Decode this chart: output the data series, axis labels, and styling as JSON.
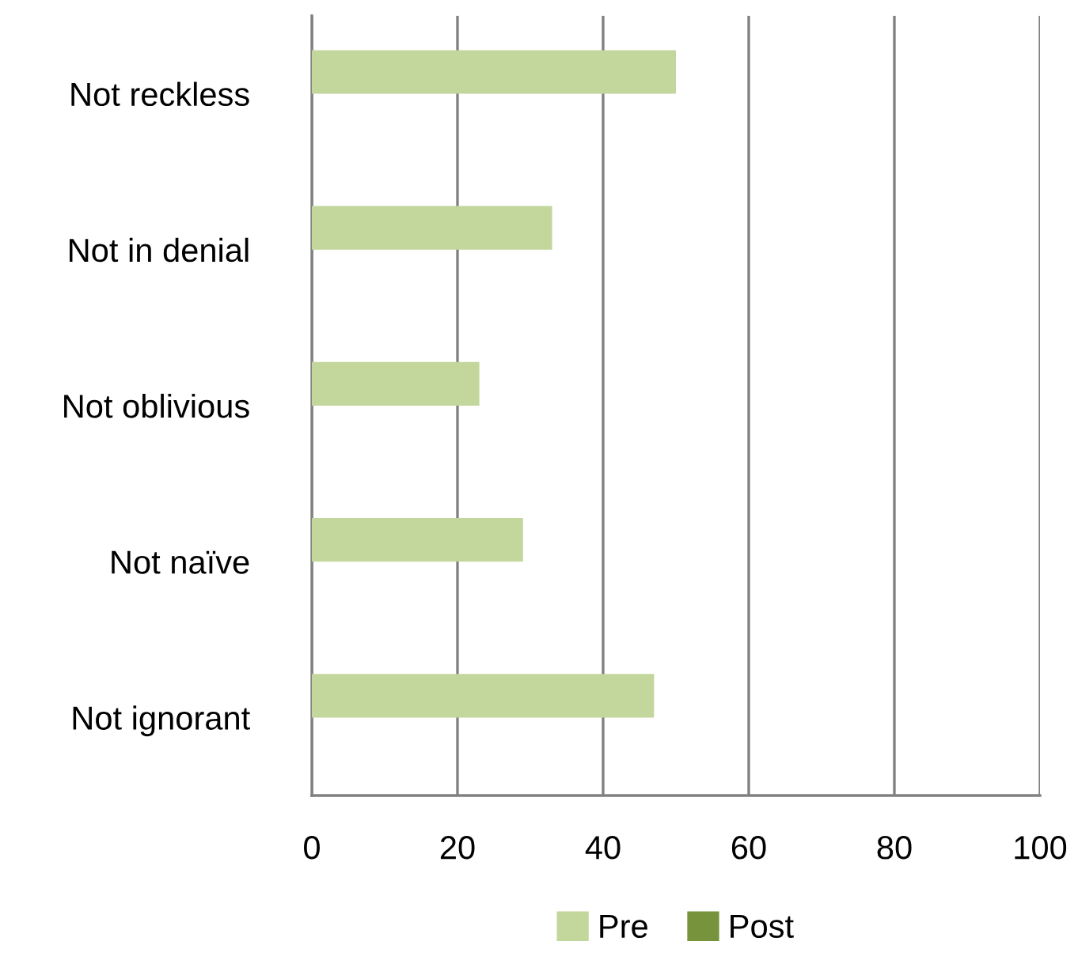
{
  "chart_data": {
    "type": "bar",
    "orientation": "horizontal",
    "categories": [
      "Not reckless",
      "Not in denial",
      "Not oblivious",
      "Not naïve",
      "Not ignorant"
    ],
    "series": [
      {
        "name": "Pre",
        "color": "#c3d69b",
        "values": [
          50,
          33,
          23,
          29,
          47
        ]
      },
      {
        "name": "Post",
        "color": "#77933c",
        "values": [
          0,
          0,
          0,
          0,
          0
        ]
      }
    ],
    "xlim": [
      0,
      100
    ],
    "xticks": [
      0,
      20,
      40,
      60,
      80,
      100
    ],
    "grid": "x",
    "legend": "bottom"
  }
}
